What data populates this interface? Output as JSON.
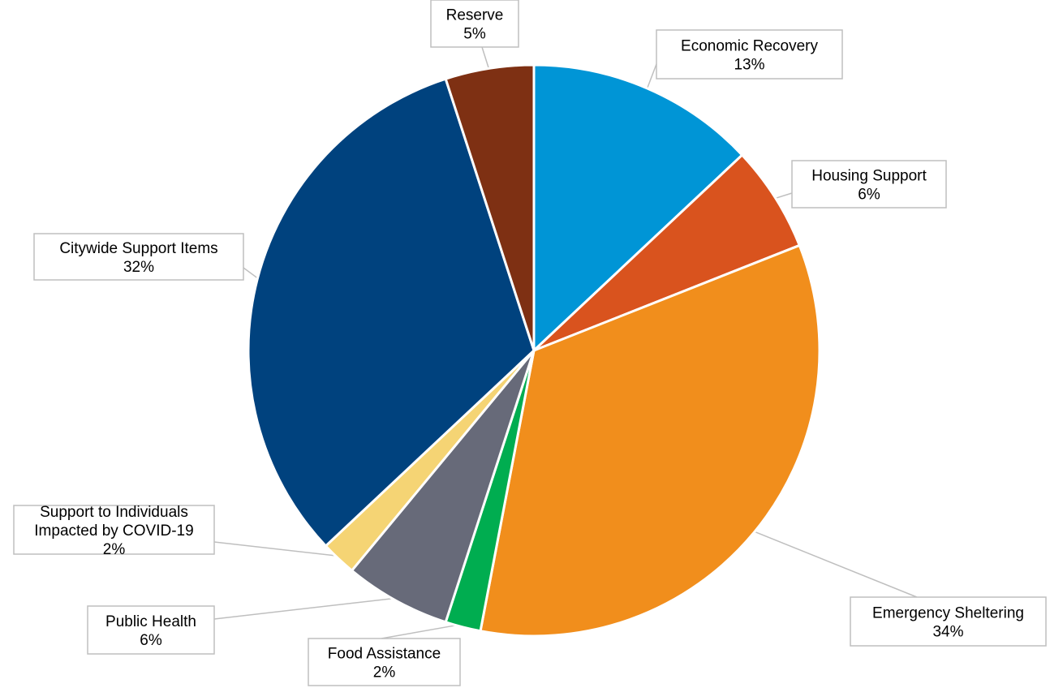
{
  "chart_data": {
    "type": "pie",
    "title": "",
    "start_angle_deg": 0,
    "direction": "clockwise",
    "slices": [
      {
        "label": "Economic Recovery",
        "value": 13,
        "display": "13%",
        "color": "#0095D6"
      },
      {
        "label": "Housing Support",
        "value": 6,
        "display": "6%",
        "color": "#D9531E"
      },
      {
        "label": "Emergency Sheltering",
        "value": 34,
        "display": "34%",
        "color": "#F18E1C"
      },
      {
        "label": "Food Assistance",
        "value": 2,
        "display": "2%",
        "color": "#00AD50"
      },
      {
        "label": "Public Health",
        "value": 6,
        "display": "6%",
        "color": "#676A79"
      },
      {
        "label": "Support to Individuals Impacted by COVID-19",
        "value": 2,
        "display": "2%",
        "color": "#F5D474"
      },
      {
        "label": "Citywide Support Items",
        "value": 32,
        "display": "32%",
        "color": "#00427E"
      },
      {
        "label": "Reserve",
        "value": 5,
        "display": "5%",
        "color": "#7E3013"
      }
    ]
  }
}
